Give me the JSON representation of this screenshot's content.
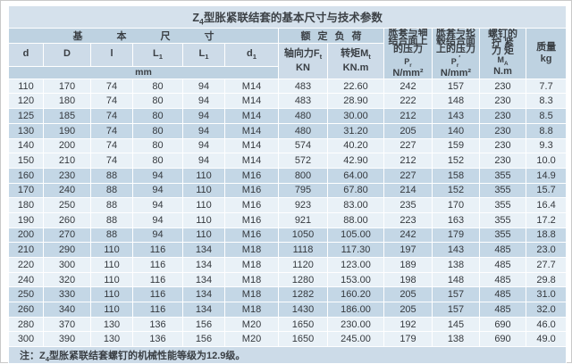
{
  "title": {
    "prefix": "Z",
    "sub": "4",
    "rest": "型胀紧联结套的基本尺寸与技术参数"
  },
  "table": {
    "group_basic": "基本尺寸",
    "group_load": "额定负荷",
    "dims": [
      {
        "base": "d",
        "sub": ""
      },
      {
        "base": "D",
        "sub": ""
      },
      {
        "base": "l",
        "sub": ""
      },
      {
        "base": "L",
        "sub": "1"
      },
      {
        "base": "L",
        "sub": "1"
      },
      {
        "base": "d",
        "sub": "1"
      }
    ],
    "unit_mm": "mm",
    "axial_force": {
      "label": "轴向力F",
      "sub": "t",
      "unit": "KN"
    },
    "torque": {
      "label": "转矩M",
      "sub": "t",
      "unit": "KN.m"
    },
    "shaft_pressure": {
      "l1": "胀套与轴",
      "l2": "结合面上",
      "l3": "的压力",
      "sym": "P",
      "sub": "r",
      "sup": "",
      "unit": "N/mm²"
    },
    "hub_pressure": {
      "l1": "胀套与轮",
      "l2": "毂结合面",
      "l3": "上的压力",
      "sym": "P",
      "sub": "r",
      "sup": "′",
      "unit": "N/mm²"
    },
    "screw_torque": {
      "l1": "螺钉的",
      "l2": "拧 紧",
      "l3": "力 矩",
      "sym": "M",
      "sub": "A",
      "unit": "N.m"
    },
    "mass": {
      "l1": "质量",
      "unit": "kg"
    },
    "rows": [
      [
        "110",
        "170",
        "74",
        "80",
        "94",
        "M14",
        "483",
        "22.60",
        "242",
        "157",
        "230",
        "7.7"
      ],
      [
        "120",
        "180",
        "74",
        "80",
        "94",
        "M14",
        "483",
        "28.90",
        "222",
        "148",
        "230",
        "8.3"
      ],
      [
        "125",
        "185",
        "74",
        "80",
        "94",
        "M14",
        "480",
        "30.00",
        "212",
        "143",
        "230",
        "8.5"
      ],
      [
        "130",
        "190",
        "74",
        "80",
        "94",
        "M14",
        "480",
        "31.20",
        "205",
        "140",
        "230",
        "8.8"
      ],
      [
        "140",
        "200",
        "74",
        "80",
        "94",
        "M14",
        "574",
        "40.20",
        "227",
        "159",
        "230",
        "9.3"
      ],
      [
        "150",
        "210",
        "74",
        "80",
        "94",
        "M14",
        "572",
        "42.90",
        "212",
        "152",
        "230",
        "10.0"
      ],
      [
        "160",
        "230",
        "88",
        "94",
        "110",
        "M16",
        "800",
        "64.00",
        "227",
        "158",
        "355",
        "14.9"
      ],
      [
        "170",
        "240",
        "88",
        "94",
        "110",
        "M16",
        "795",
        "67.80",
        "214",
        "152",
        "355",
        "15.7"
      ],
      [
        "180",
        "250",
        "88",
        "94",
        "110",
        "M16",
        "923",
        "83.00",
        "235",
        "170",
        "355",
        "16.4"
      ],
      [
        "190",
        "260",
        "88",
        "94",
        "110",
        "M16",
        "921",
        "88.00",
        "223",
        "163",
        "355",
        "17.2"
      ],
      [
        "200",
        "270",
        "88",
        "94",
        "110",
        "M16",
        "1050",
        "105.00",
        "242",
        "179",
        "355",
        "18.8"
      ],
      [
        "210",
        "290",
        "110",
        "116",
        "134",
        "M18",
        "1118",
        "117.30",
        "197",
        "143",
        "485",
        "23.0"
      ],
      [
        "220",
        "300",
        "110",
        "116",
        "134",
        "M18",
        "1120",
        "123.00",
        "189",
        "138",
        "485",
        "27.7"
      ],
      [
        "240",
        "320",
        "110",
        "116",
        "134",
        "M18",
        "1280",
        "153.00",
        "198",
        "148",
        "485",
        "29.8"
      ],
      [
        "250",
        "330",
        "110",
        "116",
        "134",
        "M18",
        "1282",
        "160.20",
        "205",
        "157",
        "485",
        "31.0"
      ],
      [
        "260",
        "340",
        "110",
        "116",
        "134",
        "M18",
        "1430",
        "186.00",
        "205",
        "157",
        "485",
        "32.0"
      ],
      [
        "280",
        "370",
        "130",
        "136",
        "156",
        "M20",
        "1650",
        "230.00",
        "192",
        "145",
        "690",
        "46.0"
      ],
      [
        "300",
        "390",
        "130",
        "136",
        "156",
        "M20",
        "1650",
        "245.00",
        "179",
        "138",
        "690",
        "49.0"
      ]
    ]
  },
  "note": {
    "prefix": "注：Z",
    "sub": "4",
    "rest": "型胀紧联结套螺钉的机械性能等级为12.9级。"
  },
  "colors": {
    "title_bg": "#d5e1ec",
    "header_bg": "#bed2e1",
    "subheader_bg": "#cddbe8",
    "row_light": "#e9f1f7",
    "row_dark": "#c4d7e6",
    "note_bg": "#ccdbe8",
    "text": "#3a3f44"
  }
}
